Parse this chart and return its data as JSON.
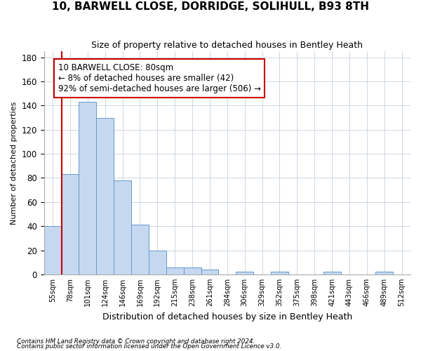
{
  "title": "10, BARWELL CLOSE, DORRIDGE, SOLIHULL, B93 8TH",
  "subtitle": "Size of property relative to detached houses in Bentley Heath",
  "xlabel": "Distribution of detached houses by size in Bentley Heath",
  "ylabel": "Number of detached properties",
  "footnote1": "Contains HM Land Registry data © Crown copyright and database right 2024.",
  "footnote2": "Contains public sector information licensed under the Open Government Licence v3.0.",
  "annotation_title": "10 BARWELL CLOSE: 80sqm",
  "annotation_line1": "← 8% of detached houses are smaller (42)",
  "annotation_line2": "92% of semi-detached houses are larger (506) →",
  "bar_categories": [
    "55sqm",
    "78sqm",
    "101sqm",
    "124sqm",
    "146sqm",
    "169sqm",
    "192sqm",
    "215sqm",
    "238sqm",
    "261sqm",
    "284sqm",
    "306sqm",
    "329sqm",
    "352sqm",
    "375sqm",
    "398sqm",
    "421sqm",
    "443sqm",
    "466sqm",
    "489sqm",
    "512sqm"
  ],
  "bar_values": [
    40,
    83,
    143,
    130,
    78,
    41,
    20,
    6,
    6,
    4,
    0,
    2,
    0,
    2,
    0,
    0,
    2,
    0,
    0,
    2,
    0
  ],
  "bar_color": "#c5d8f0",
  "bar_edge_color": "#6699cc",
  "highlight_bar_index": 1,
  "highlight_color": "#cc0000",
  "ylim": [
    0,
    185
  ],
  "yticks": [
    0,
    20,
    40,
    60,
    80,
    100,
    120,
    140,
    160,
    180
  ],
  "annotation_box_edge_color": "#cc0000",
  "annotation_box_face": "#ffffff",
  "background_color": "#ffffff",
  "grid_color": "#c8d0dc"
}
